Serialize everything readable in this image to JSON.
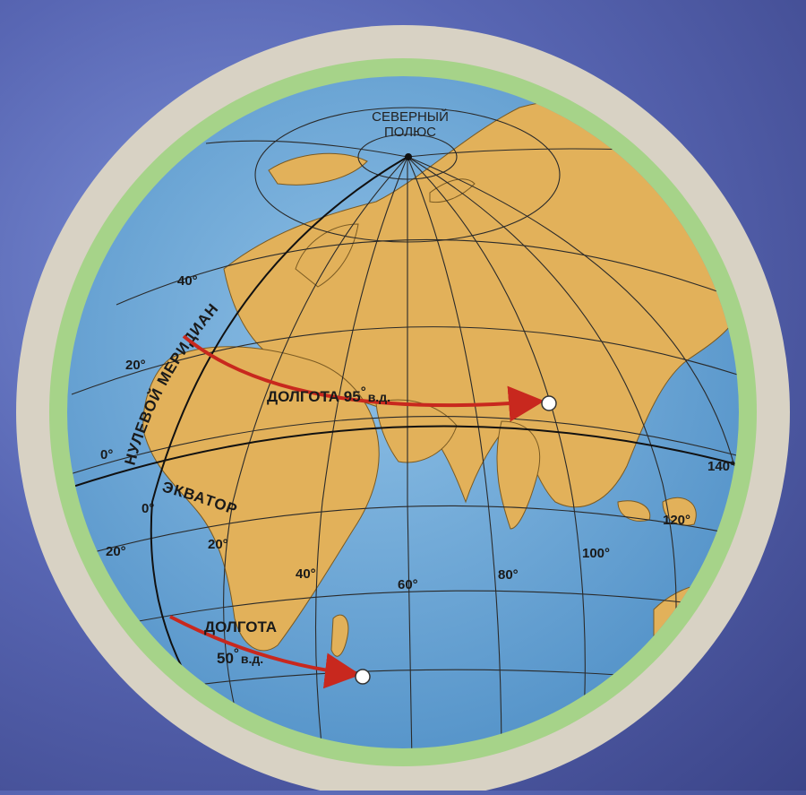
{
  "map": {
    "north_pole_label_1": "СЕВЕРНЫЙ",
    "north_pole_label_2": "ПОЛЮС",
    "prime_meridian_label": "НУЛЕВОЙ МЕРИДИАН",
    "equator_label": "ЭКВАТОР",
    "longitude_95": {
      "label_1": "ДОЛГОТА 95",
      "label_2": "в.д.",
      "degree": "°"
    },
    "longitude_50": {
      "label_1": "ДОЛГОТА",
      "label_2": "50",
      "label_3": "в.д.",
      "degree": "°"
    },
    "latitude_labels": [
      "40°",
      "20°",
      "0°",
      "20°"
    ],
    "longitude_labels": [
      "0°",
      "20°",
      "40°",
      "60°",
      "80°",
      "100°",
      "120°",
      "140°"
    ]
  },
  "colors": {
    "ocean": "#6aa6d6",
    "land": "#e2b15a",
    "ring_outer": "#d8d2c4",
    "ring_inner": "#a6d389",
    "arrow": "#c8281e",
    "grid": "#2a2a2a"
  }
}
